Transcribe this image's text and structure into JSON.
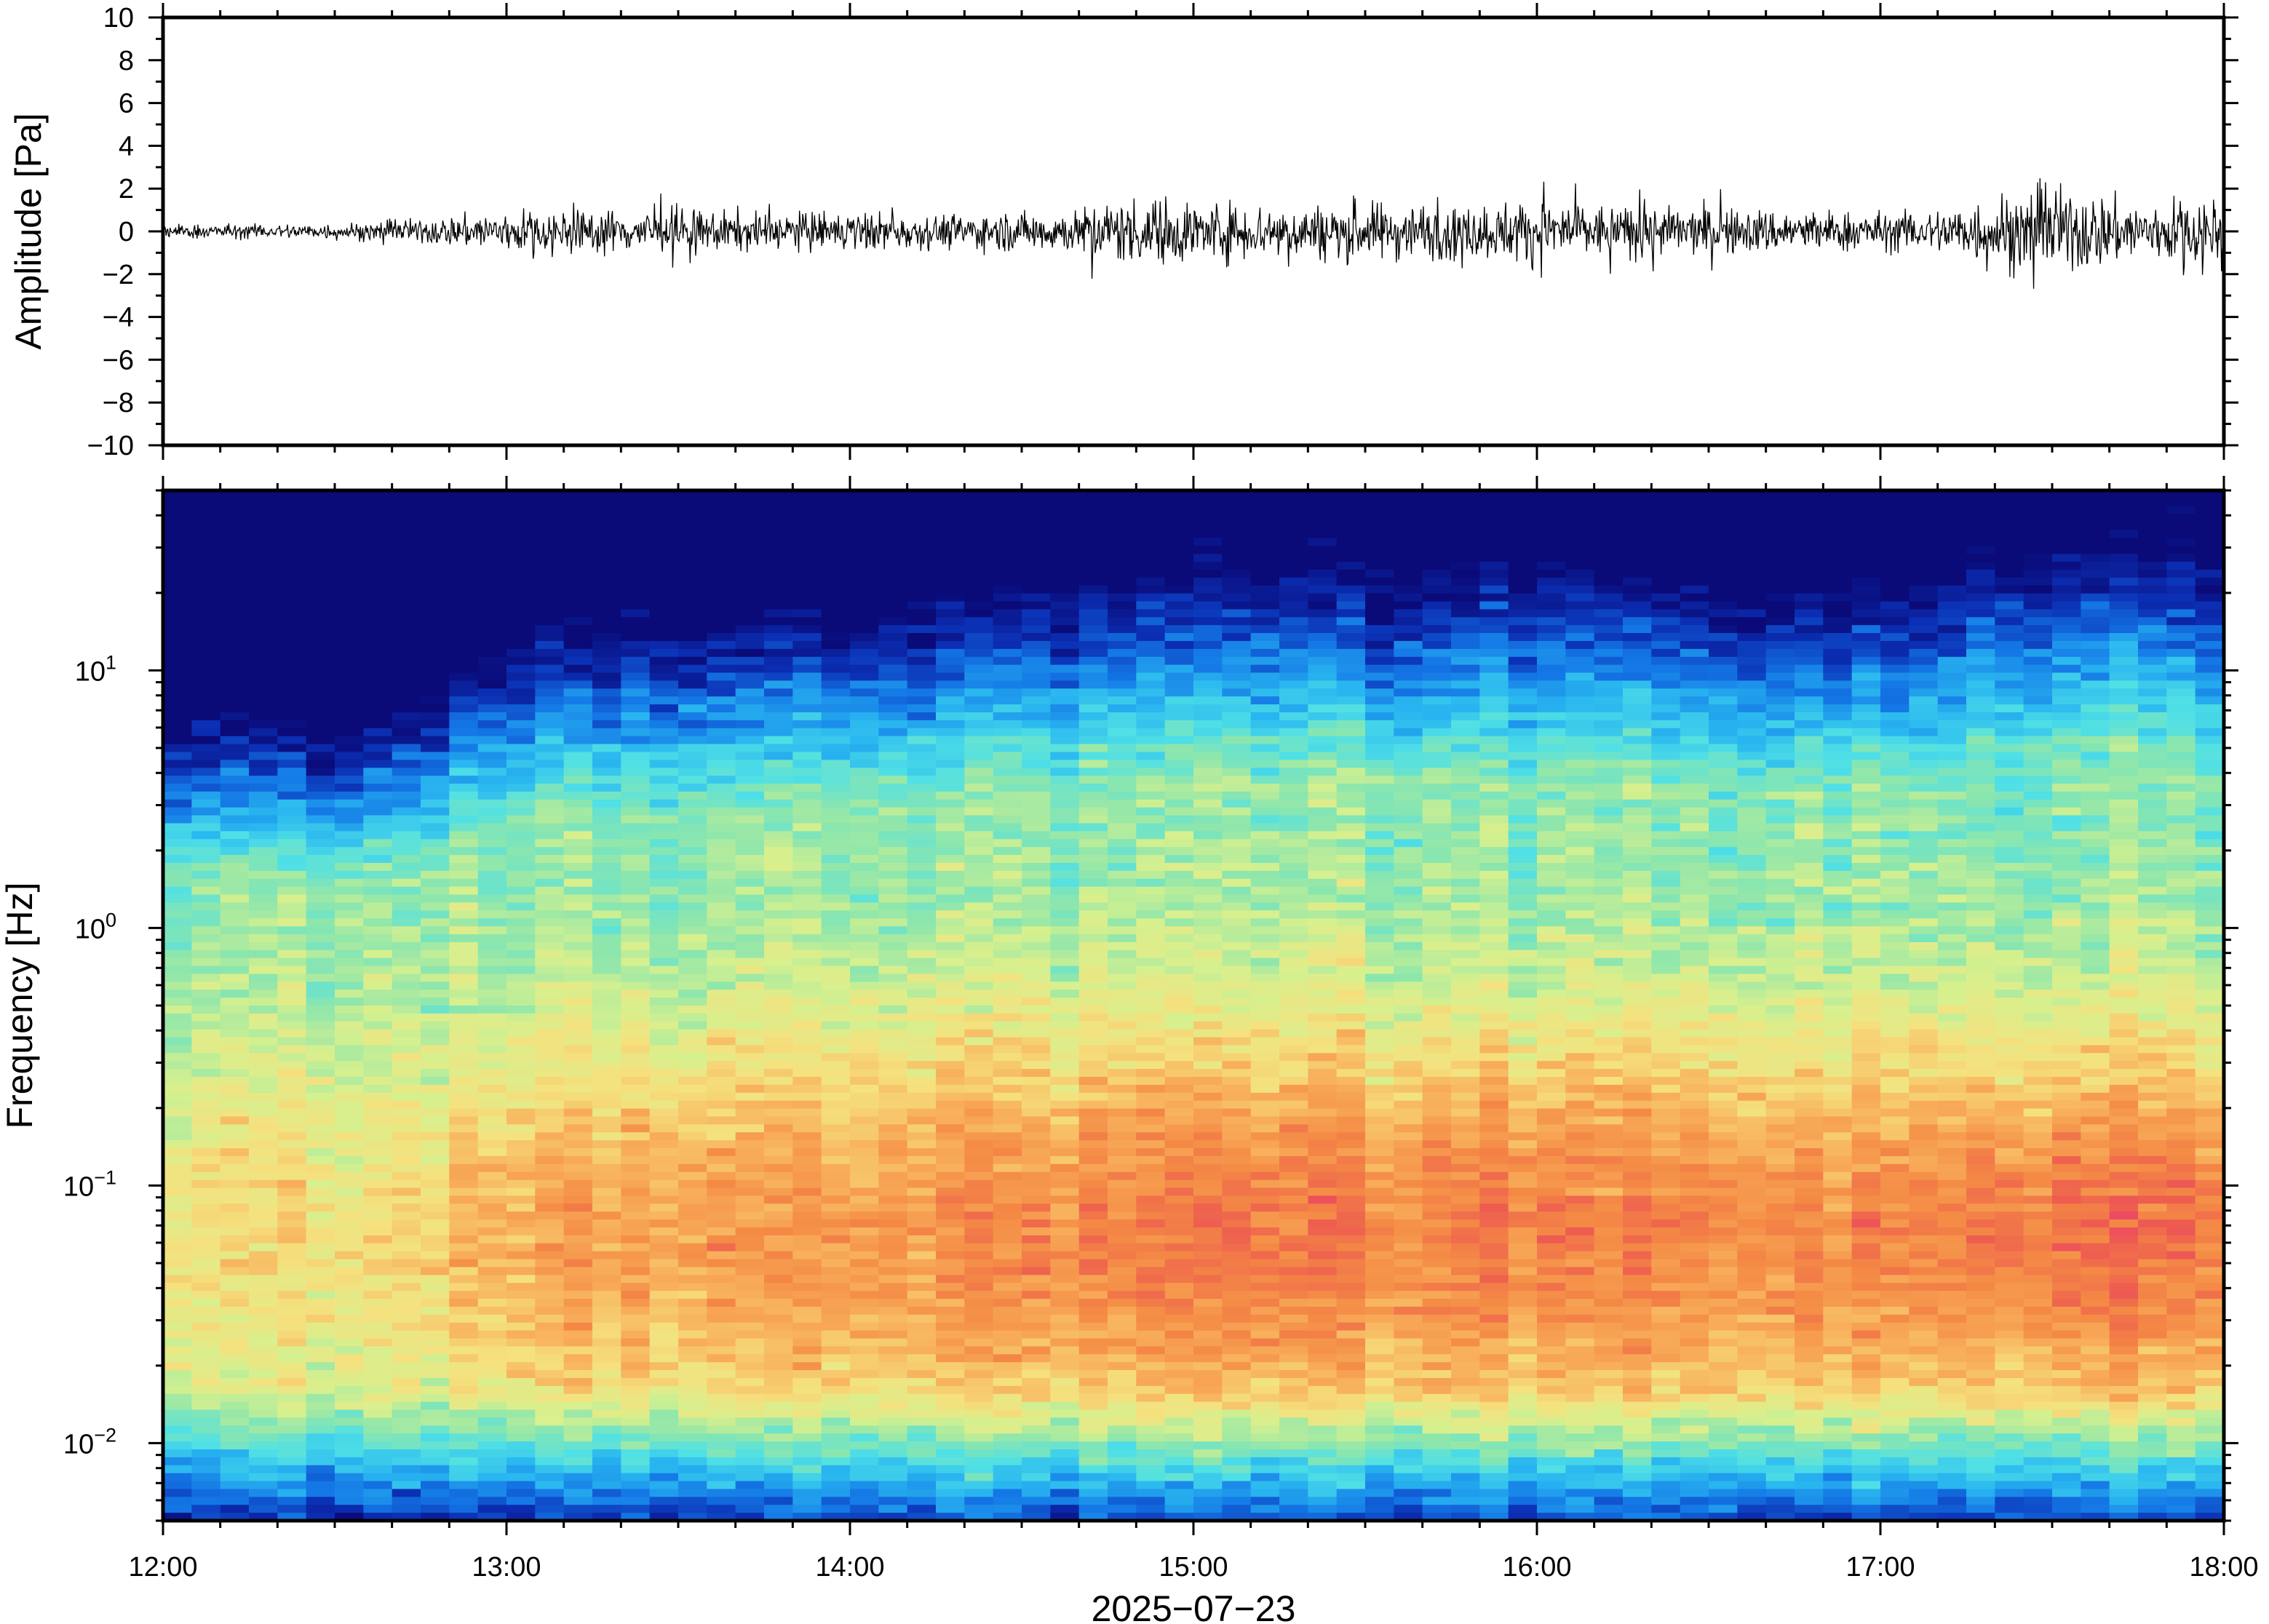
{
  "chart_data": [
    {
      "type": "line",
      "panel": "waveform",
      "ylabel": "Amplitude [Pa]",
      "xlabel": "",
      "x_range": [
        "2025-07-23T12:00",
        "2025-07-23T18:00"
      ],
      "ylim": [
        -10,
        10
      ],
      "y_ticks": [
        "10",
        "8",
        "6",
        "4",
        "2",
        "0",
        "−2",
        "−4",
        "−6",
        "−8",
        "−10"
      ],
      "y_tick_values": [
        10,
        8,
        6,
        4,
        2,
        0,
        -2,
        -4,
        -6,
        -8,
        -10
      ],
      "series": [
        {
          "color": "#000000",
          "envelope_time": [
            "12:00",
            "12:20",
            "12:40",
            "12:50",
            "13:00",
            "13:15",
            "13:30",
            "13:45",
            "14:00",
            "14:15",
            "14:30",
            "14:40",
            "14:45",
            "14:55",
            "15:05",
            "15:20",
            "15:35",
            "15:50",
            "16:00",
            "16:10",
            "16:25",
            "16:45",
            "17:00",
            "17:10",
            "17:20",
            "17:35",
            "17:45",
            "17:55",
            "18:00"
          ],
          "envelope_amplitude_pa": [
            0.3,
            0.3,
            0.4,
            0.6,
            0.9,
            0.9,
            0.9,
            0.8,
            0.8,
            0.7,
            0.8,
            0.9,
            1.3,
            1.4,
            1.2,
            1.1,
            1.2,
            1.1,
            1.4,
            1.1,
            1.0,
            0.9,
            0.8,
            0.9,
            1.6,
            1.7,
            1.2,
            1.5,
            1.6
          ],
          "peak_amplitude_pa": [
            2.2,
            2.5,
            2.8
          ]
        }
      ]
    },
    {
      "type": "heatmap",
      "panel": "spectrogram",
      "ylabel": "Frequency [Hz]",
      "xlabel": "2025−07−23",
      "x_ticks": [
        "12:00",
        "13:00",
        "14:00",
        "15:00",
        "16:00",
        "17:00",
        "18:00"
      ],
      "y_scale": "log",
      "ylim_hz": [
        0.005,
        50
      ],
      "y_ticks": [
        {
          "base": "10",
          "exp": "1",
          "value": 10
        },
        {
          "base": "10",
          "exp": "0",
          "value": 1
        },
        {
          "base": "10",
          "exp": "−1",
          "value": 0.1
        },
        {
          "base": "10",
          "exp": "−2",
          "value": 0.01
        }
      ],
      "colormap": [
        "#0a0a78",
        "#0b2fb4",
        "#1478e6",
        "#29b6f0",
        "#4fe0e6",
        "#8ce6ad",
        "#d7f08e",
        "#f5e17e",
        "#f8b05c",
        "#f48a45",
        "#ee5e4f",
        "#e9406e"
      ],
      "regime_time": [
        "12:00",
        "12:30",
        "12:48",
        "13:00",
        "14:00",
        "14:45",
        "15:00",
        "16:00",
        "17:00",
        "17:20",
        "17:45",
        "18:00"
      ],
      "dominant_band_hz": [
        0.02,
        0.2
      ],
      "relative_level": [
        0.45,
        0.42,
        0.55,
        0.75,
        0.78,
        0.9,
        0.92,
        0.92,
        0.85,
        1.0,
        0.98,
        1.0
      ]
    }
  ]
}
